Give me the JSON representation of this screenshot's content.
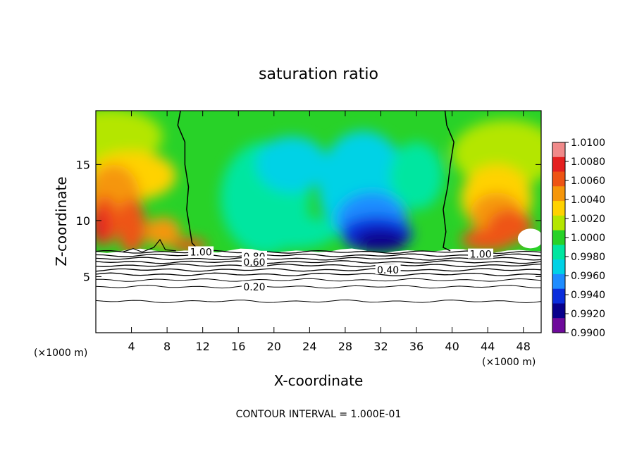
{
  "chart_data": {
    "type": "heatmap",
    "title": "saturation ratio",
    "xlabel": "X-coordinate",
    "ylabel": "Z-coordinate",
    "x_unit_left": "(×1000 m)",
    "x_unit_right": "(×1000 m)",
    "footer": "CONTOUR INTERVAL = 1.000E-01",
    "xlim": [
      0,
      50
    ],
    "ylim": [
      0,
      19.8
    ],
    "x_ticks": [
      4,
      8,
      12,
      16,
      20,
      24,
      28,
      32,
      36,
      40,
      44,
      48
    ],
    "y_ticks": [
      5,
      10,
      15
    ],
    "colorbar": {
      "min": 0.99,
      "max": 1.01,
      "labels": [
        "1.0100",
        "1.0080",
        "1.0060",
        "1.0040",
        "1.0020",
        "1.0000",
        "0.9980",
        "0.9960",
        "0.9940",
        "0.9920",
        "0.9900"
      ],
      "colors": [
        "#f08a8a",
        "#e42020",
        "#ee5414",
        "#f5960a",
        "#ffd200",
        "#b4e600",
        "#28d228",
        "#00e6a0",
        "#00d2e6",
        "#1e8cff",
        "#0a2ddc",
        "#08008c",
        "#6e0a9b"
      ]
    },
    "contour_labels": [
      {
        "text": "1.00",
        "x": 11.8,
        "z": 7.2
      },
      {
        "text": "1.00",
        "x": 43.2,
        "z": 7.0
      },
      {
        "text": "0.80",
        "x": 17.8,
        "z": 6.8
      },
      {
        "text": "0.60",
        "x": 17.8,
        "z": 6.3
      },
      {
        "text": "0.40",
        "x": 32.8,
        "z": 5.6
      },
      {
        "text": "0.20",
        "x": 17.8,
        "z": 4.1
      }
    ],
    "contour_levels": [
      0.2,
      0.4,
      0.6,
      0.8,
      1.0
    ],
    "cloud_base_z": 7.3,
    "note": "saturation ratio > 1.0 in near-edge regions (x<13, x>39) above cloud base; < 1.0 (blue/cyan) in central region 13<x<39"
  }
}
